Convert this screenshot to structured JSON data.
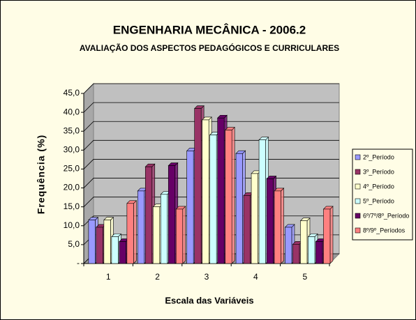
{
  "chart_data": {
    "type": "bar",
    "title": "ENGENHARIA MECÂNICA - 2006.2",
    "subtitle": "AVALIAÇÃO DOS ASPECTOS PEDAGÓGICOS E CURRICULARES",
    "x_label": "Escala das Variáveis",
    "y_label": "Frequência (%)",
    "categories": [
      "1",
      "2",
      "3",
      "4",
      "5"
    ],
    "series": [
      {
        "name": "2º_Período",
        "color": "#9999ff",
        "values": [
          11.5,
          19.2,
          29.8,
          29.1,
          9.6
        ]
      },
      {
        "name": "3º_Período",
        "color": "#993366",
        "values": [
          9.6,
          25.6,
          41.0,
          18.0,
          5.1
        ]
      },
      {
        "name": "4º_Período",
        "color": "#ffffcc",
        "values": [
          11.5,
          15.0,
          38.0,
          23.8,
          11.3
        ]
      },
      {
        "name": "5º_Período",
        "color": "#ccffff",
        "values": [
          7.1,
          18.3,
          34.0,
          32.7,
          7.1
        ]
      },
      {
        "name": "6º/7º/8º_Período",
        "color": "#660066",
        "values": [
          5.8,
          25.9,
          38.5,
          22.4,
          5.8
        ]
      },
      {
        "name": "8º/9º_Períodos",
        "color": "#ff8080",
        "values": [
          15.9,
          14.4,
          35.3,
          19.2,
          14.4
        ]
      }
    ],
    "ylim": [
      0,
      45
    ],
    "yticks": [
      {
        "value": 0,
        "label": "-"
      },
      {
        "value": 5,
        "label": "5,0"
      },
      {
        "value": 10,
        "label": "10,0"
      },
      {
        "value": 15,
        "label": "15,0"
      },
      {
        "value": 20,
        "label": "20,0"
      },
      {
        "value": 25,
        "label": "25,0"
      },
      {
        "value": 30,
        "label": "30,0"
      },
      {
        "value": 35,
        "label": "35,0"
      },
      {
        "value": 40,
        "label": "40,0"
      },
      {
        "value": 45,
        "label": "45,0"
      }
    ],
    "grid": true,
    "legend": "right"
  }
}
